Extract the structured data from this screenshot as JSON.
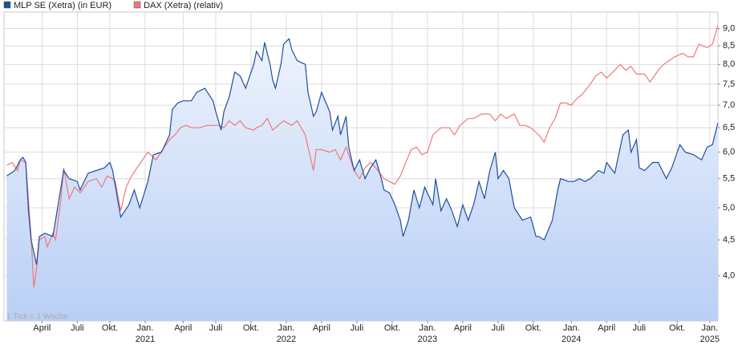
{
  "chart_data": {
    "type": "line",
    "log_scale": true,
    "grid": true,
    "legend": "top-left",
    "annotation": "1 Tick = 1 Woche",
    "xlim": [
      0,
      263
    ],
    "xticks": [
      {
        "value": 14,
        "label": "April"
      },
      {
        "value": 27,
        "label": "Juli"
      },
      {
        "value": 39,
        "label": "Okt."
      },
      {
        "value": 52,
        "label": "Jan."
      },
      {
        "value": 66,
        "label": "April"
      },
      {
        "value": 78,
        "label": "Juli"
      },
      {
        "value": 91,
        "label": "Okt."
      },
      {
        "value": 104,
        "label": "Jan."
      },
      {
        "value": 117,
        "label": "April"
      },
      {
        "value": 130,
        "label": "Juli"
      },
      {
        "value": 143,
        "label": "Okt."
      },
      {
        "value": 156,
        "label": "Jan."
      },
      {
        "value": 169,
        "label": "April"
      },
      {
        "value": 182,
        "label": "Juli"
      },
      {
        "value": 195,
        "label": "Okt."
      },
      {
        "value": 209,
        "label": "Jan."
      },
      {
        "value": 222,
        "label": "April"
      },
      {
        "value": 234,
        "label": "Juli"
      },
      {
        "value": 248,
        "label": "Okt."
      },
      {
        "value": 260,
        "label": "Jan."
      }
    ],
    "year_labels": [
      {
        "value": 52,
        "label": "2021"
      },
      {
        "value": 104,
        "label": "2022"
      },
      {
        "value": 156,
        "label": "2023"
      },
      {
        "value": 209,
        "label": "2024"
      },
      {
        "value": 260,
        "label": "2025"
      }
    ],
    "ylim": [
      3.45,
      9.5
    ],
    "yticks": [
      {
        "value": 4.0,
        "label": "4,0"
      },
      {
        "value": 4.5,
        "label": "4,5"
      },
      {
        "value": 5.0,
        "label": "5,0"
      },
      {
        "value": 5.5,
        "label": "5,5"
      },
      {
        "value": 6.0,
        "label": "6,0"
      },
      {
        "value": 6.5,
        "label": "6,5"
      },
      {
        "value": 7.0,
        "label": "7,0"
      },
      {
        "value": 7.5,
        "label": "7,5"
      },
      {
        "value": 8.0,
        "label": "8,0"
      },
      {
        "value": 8.5,
        "label": "8,5"
      },
      {
        "value": 9.0,
        "label": "9,0"
      }
    ],
    "series": [
      {
        "name": "MLP SE (Xetra) (in EUR)",
        "color": "#1f4f9f",
        "fill": true,
        "x": [
          1,
          4,
          6,
          7,
          8,
          9,
          10,
          12,
          13,
          15,
          18,
          19,
          22,
          24,
          27,
          28,
          31,
          34,
          37,
          39,
          40,
          43,
          46,
          48,
          50,
          53,
          55,
          58,
          61,
          62,
          64,
          66,
          69,
          71,
          74,
          77,
          78,
          80,
          81,
          83,
          85,
          87,
          89,
          92,
          93,
          95,
          96,
          98,
          99,
          100,
          102,
          103,
          105,
          106,
          108,
          111,
          112,
          114,
          115,
          117,
          120,
          121,
          123,
          124,
          126,
          127,
          129,
          131,
          133,
          135,
          137,
          139,
          140,
          142,
          144,
          146,
          147,
          149,
          151,
          153,
          155,
          158,
          159,
          161,
          163,
          165,
          167,
          169,
          171,
          173,
          175,
          177,
          179,
          181,
          182,
          184,
          186,
          188,
          191,
          194,
          196,
          197,
          199,
          202,
          204,
          205,
          208,
          210,
          212,
          214,
          216,
          219,
          221,
          222,
          225,
          228,
          230,
          231,
          233,
          234,
          236,
          239,
          241,
          244,
          246,
          249,
          251,
          254,
          257,
          259,
          261,
          263
        ],
        "values": [
          5.55,
          5.65,
          5.85,
          5.9,
          5.8,
          4.95,
          4.5,
          4.15,
          4.55,
          4.6,
          4.55,
          4.8,
          5.65,
          5.5,
          5.45,
          5.3,
          5.6,
          5.65,
          5.7,
          5.8,
          5.65,
          4.85,
          5.05,
          5.3,
          5.0,
          5.45,
          5.95,
          6.0,
          6.35,
          6.9,
          7.05,
          7.1,
          7.1,
          7.3,
          7.4,
          7.1,
          6.85,
          6.45,
          6.85,
          7.2,
          7.8,
          7.7,
          7.4,
          8.0,
          8.35,
          8.1,
          8.6,
          8.0,
          7.6,
          7.4,
          8.0,
          8.55,
          8.7,
          8.4,
          8.1,
          8.0,
          7.3,
          6.75,
          6.85,
          7.3,
          6.85,
          6.45,
          6.75,
          6.35,
          6.75,
          6.1,
          5.65,
          5.85,
          5.5,
          5.7,
          5.85,
          5.5,
          5.3,
          5.25,
          5.05,
          4.8,
          4.55,
          4.8,
          5.3,
          5.0,
          5.35,
          5.05,
          5.5,
          4.95,
          5.15,
          4.95,
          4.7,
          5.05,
          4.8,
          5.05,
          5.45,
          5.15,
          5.65,
          6.0,
          5.5,
          5.65,
          5.5,
          5.0,
          4.8,
          4.85,
          4.55,
          4.55,
          4.5,
          4.8,
          5.3,
          5.5,
          5.45,
          5.45,
          5.5,
          5.45,
          5.5,
          5.65,
          5.6,
          5.8,
          5.6,
          6.35,
          6.45,
          6.0,
          6.25,
          5.7,
          5.65,
          5.8,
          5.8,
          5.5,
          5.7,
          6.15,
          6.0,
          5.95,
          5.85,
          6.1,
          6.15,
          6.6
        ]
      },
      {
        "name": "DAX (Xetra) (relativ)",
        "color": "#f07878",
        "fill": false,
        "x": [
          1,
          3,
          5,
          6,
          8,
          10,
          11,
          12,
          13,
          15,
          16,
          18,
          19,
          21,
          22,
          24,
          26,
          28,
          31,
          34,
          36,
          38,
          40,
          41,
          43,
          45,
          47,
          49,
          51,
          53,
          56,
          59,
          61,
          63,
          65,
          67,
          69,
          72,
          75,
          77,
          79,
          81,
          83,
          85,
          87,
          89,
          92,
          93,
          95,
          97,
          99,
          101,
          103,
          106,
          108,
          111,
          112,
          114,
          115,
          117,
          120,
          122,
          124,
          126,
          129,
          131,
          133,
          135,
          137,
          140,
          142,
          144,
          146,
          148,
          150,
          152,
          154,
          156,
          158,
          161,
          164,
          166,
          168,
          171,
          173,
          176,
          179,
          181,
          183,
          185,
          188,
          190,
          192,
          194,
          197,
          199,
          201,
          203,
          205,
          207,
          209,
          211,
          213,
          216,
          218,
          220,
          222,
          225,
          227,
          229,
          231,
          233,
          236,
          238,
          241,
          243,
          245,
          247,
          250,
          252,
          254,
          256,
          259,
          261,
          263
        ],
        "values": [
          5.75,
          5.8,
          5.65,
          5.85,
          5.8,
          4.55,
          3.85,
          4.1,
          4.5,
          4.55,
          4.4,
          4.6,
          4.5,
          5.15,
          5.7,
          5.15,
          5.35,
          5.25,
          5.45,
          5.5,
          5.35,
          5.55,
          5.5,
          5.45,
          4.95,
          5.35,
          5.55,
          5.7,
          5.85,
          6.0,
          5.85,
          6.1,
          6.25,
          6.35,
          6.5,
          6.55,
          6.5,
          6.5,
          6.55,
          6.55,
          6.55,
          6.5,
          6.65,
          6.55,
          6.65,
          6.5,
          6.45,
          6.5,
          6.55,
          6.7,
          6.45,
          6.55,
          6.65,
          6.55,
          6.65,
          6.35,
          6.1,
          5.65,
          6.05,
          6.05,
          6.0,
          6.05,
          5.85,
          6.1,
          5.65,
          5.5,
          5.7,
          5.8,
          5.7,
          5.5,
          5.45,
          5.4,
          5.55,
          5.8,
          6.05,
          6.1,
          5.95,
          6.0,
          6.35,
          6.5,
          6.5,
          6.35,
          6.55,
          6.7,
          6.7,
          6.8,
          6.8,
          6.65,
          6.8,
          6.7,
          6.8,
          6.55,
          6.55,
          6.5,
          6.35,
          6.2,
          6.5,
          6.7,
          7.05,
          7.05,
          7.0,
          7.15,
          7.25,
          7.5,
          7.7,
          7.8,
          7.65,
          7.85,
          8.0,
          7.85,
          7.95,
          7.75,
          7.75,
          7.55,
          7.85,
          8.0,
          8.1,
          8.2,
          8.3,
          8.2,
          8.2,
          8.55,
          8.45,
          8.55,
          9.1
        ]
      }
    ]
  }
}
